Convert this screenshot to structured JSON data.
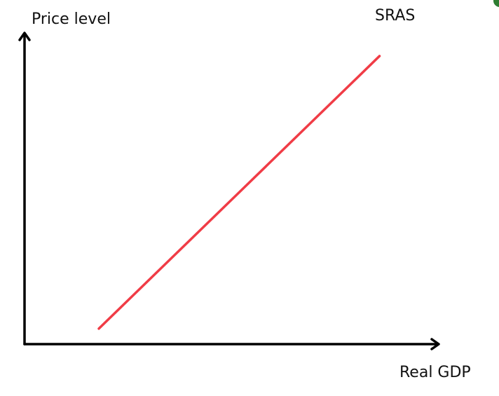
{
  "diagram": {
    "y_axis_label": "Price level",
    "x_axis_label": "Real GDP",
    "curve_label": "SRAS",
    "axis_color": "#000000",
    "curve_color": "#f03c46",
    "corner_mark_color": "#2e7d32"
  },
  "chart_data": {
    "type": "line",
    "title": "",
    "xlabel": "Real GDP",
    "ylabel": "Price level",
    "xlim": [
      0,
      100
    ],
    "ylim": [
      0,
      100
    ],
    "grid": false,
    "series": [
      {
        "name": "SRAS",
        "x": [
          18,
          86
        ],
        "y": [
          5,
          93
        ]
      }
    ]
  }
}
